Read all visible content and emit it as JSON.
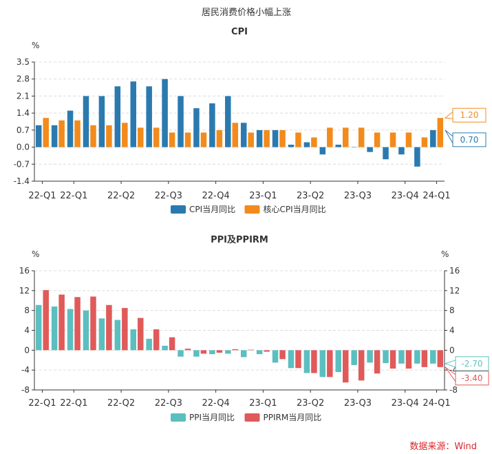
{
  "figure_title": "居民消费价格小幅上涨",
  "source": "数据来源：Wind",
  "chart_data": [
    {
      "type": "bar",
      "title": "CPI",
      "ylabel": "%",
      "ylim": [
        -1.4,
        3.5
      ],
      "yticks": [
        "3.5",
        "2.8",
        "2.1",
        "1.4",
        "0.7",
        "0.0",
        "-0.7",
        "-1.4"
      ],
      "ytick_values": [
        3.5,
        2.8,
        2.1,
        1.4,
        0.7,
        0.0,
        -0.7,
        -1.4
      ],
      "xtick_labels": [
        "22-Q1",
        "22-Q1",
        "22-Q2",
        "22-Q3",
        "22-Q4",
        "23-Q1",
        "23-Q2",
        "23-Q3",
        "23-Q4",
        "24-Q1"
      ],
      "xtick_indices": [
        0,
        2,
        5,
        8,
        11,
        14,
        17,
        20,
        23,
        25
      ],
      "grid": true,
      "legend_position": "bottom-center",
      "series": [
        {
          "name": "CPI当月同比",
          "color": "#2a7ab0",
          "values": [
            0.9,
            0.9,
            1.5,
            2.1,
            2.1,
            2.5,
            2.7,
            2.5,
            2.8,
            2.1,
            1.6,
            1.8,
            2.1,
            1.0,
            0.7,
            0.7,
            0.1,
            0.2,
            -0.3,
            0.1,
            0.0,
            -0.2,
            -0.5,
            -0.3,
            -0.8,
            0.7
          ]
        },
        {
          "name": "核心CPI当月同比",
          "color": "#f28b1c",
          "values": [
            1.2,
            1.1,
            1.1,
            0.9,
            0.9,
            1.0,
            0.8,
            0.8,
            0.6,
            0.6,
            0.6,
            0.7,
            1.0,
            0.6,
            0.7,
            0.7,
            0.6,
            0.4,
            0.8,
            0.8,
            0.8,
            0.6,
            0.6,
            0.6,
            0.4,
            1.2
          ]
        }
      ],
      "end_labels": [
        {
          "text": "1.20",
          "series": 1,
          "color": "#f28b1c"
        },
        {
          "text": "0.70",
          "series": 0,
          "color": "#2a7ab0"
        }
      ]
    },
    {
      "type": "bar",
      "title": "PPI及PPIRM",
      "ylabel": "%",
      "ylabel_right": "%",
      "ylim": [
        -8,
        16
      ],
      "yticks": [
        "16",
        "12",
        "8",
        "4",
        "0",
        "-4",
        "-8"
      ],
      "ytick_values": [
        16,
        12,
        8,
        4,
        0,
        -4,
        -8
      ],
      "xtick_labels": [
        "22-Q1",
        "22-Q1",
        "22-Q2",
        "22-Q3",
        "22-Q4",
        "23-Q1",
        "23-Q2",
        "23-Q3",
        "23-Q4",
        "24-Q1"
      ],
      "xtick_indices": [
        0,
        2,
        5,
        8,
        11,
        14,
        17,
        20,
        23,
        25
      ],
      "grid": true,
      "legend_position": "bottom-center",
      "series": [
        {
          "name": "PPI当月同比",
          "color": "#5bbfc0",
          "values": [
            9.1,
            8.8,
            8.3,
            8.0,
            6.4,
            6.1,
            4.2,
            2.3,
            0.9,
            -1.3,
            -1.3,
            -0.8,
            -0.7,
            -1.4,
            -0.8,
            -2.5,
            -3.6,
            -4.6,
            -5.4,
            -4.4,
            -3.0,
            -2.5,
            -2.6,
            -2.7,
            -2.7,
            -2.7
          ]
        },
        {
          "name": "PPIRM当月同比",
          "color": "#e05a5a",
          "values": [
            12.1,
            11.2,
            10.7,
            10.8,
            9.1,
            8.5,
            6.5,
            4.2,
            2.6,
            0.3,
            -0.7,
            -0.5,
            0.2,
            0.1,
            -0.3,
            -1.8,
            -3.6,
            -4.6,
            -5.4,
            -6.5,
            -6.1,
            -4.7,
            -3.7,
            -3.7,
            -3.4,
            -3.4
          ]
        }
      ],
      "end_labels": [
        {
          "text": "-2.70",
          "series": 0,
          "color": "#5bbfc0"
        },
        {
          "text": "-3.40",
          "series": 1,
          "color": "#e05a5a"
        }
      ]
    }
  ]
}
